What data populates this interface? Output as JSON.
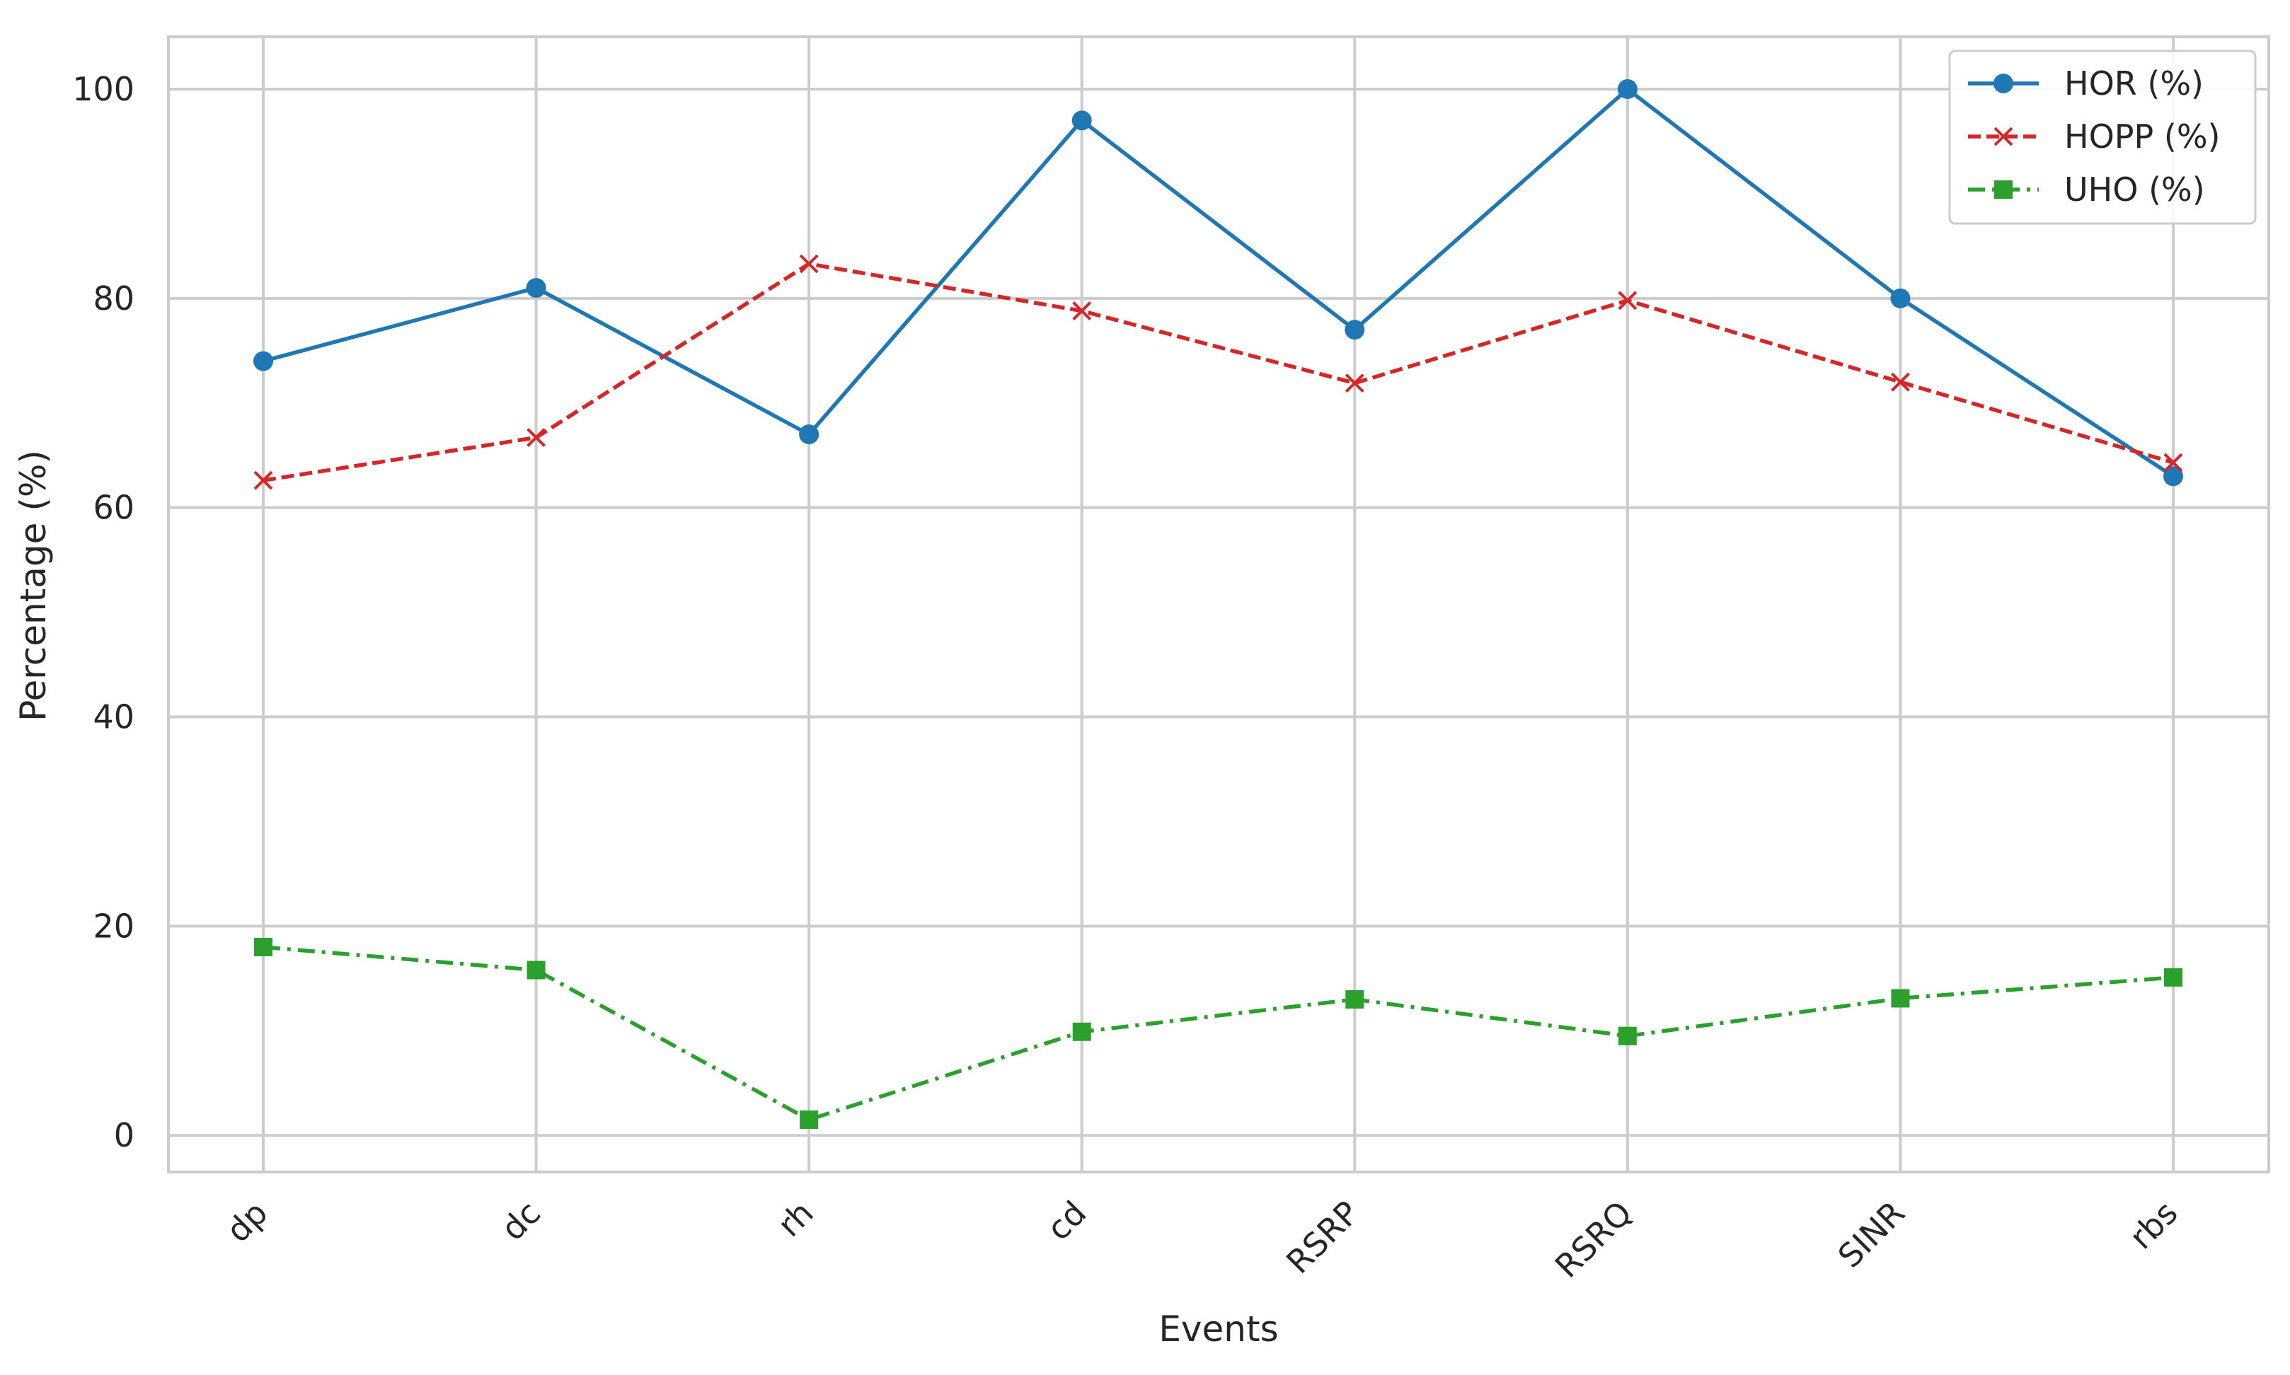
{
  "chart_data": {
    "type": "line",
    "title": "",
    "xlabel": "Events",
    "ylabel": "Percentage (%)",
    "categories": [
      "dp",
      "dc",
      "rh",
      "cd",
      "RSRP",
      "RSRQ",
      "SINR",
      "rbs"
    ],
    "ylim": [
      -3.5,
      105
    ],
    "yticks": [
      0,
      20,
      40,
      60,
      80,
      100
    ],
    "grid": true,
    "legend_position": "top-right",
    "series": [
      {
        "name": "HOR (%)",
        "color": "#1f77b4",
        "line_style": "solid",
        "marker": "circle",
        "values": [
          74,
          81,
          67,
          97,
          77,
          100,
          80,
          63
        ]
      },
      {
        "name": "HOPP (%)",
        "color": "#d62728",
        "line_style": "dashed",
        "marker": "x",
        "values": [
          62.6,
          66.7,
          83.3,
          78.8,
          71.9,
          79.8,
          72.0,
          64.3
        ]
      },
      {
        "name": "UHO (%)",
        "color": "#2ca02c",
        "line_style": "dashdot",
        "marker": "square",
        "values": [
          18.0,
          15.8,
          1.5,
          9.9,
          13.0,
          9.5,
          13.1,
          15.1
        ]
      }
    ]
  }
}
